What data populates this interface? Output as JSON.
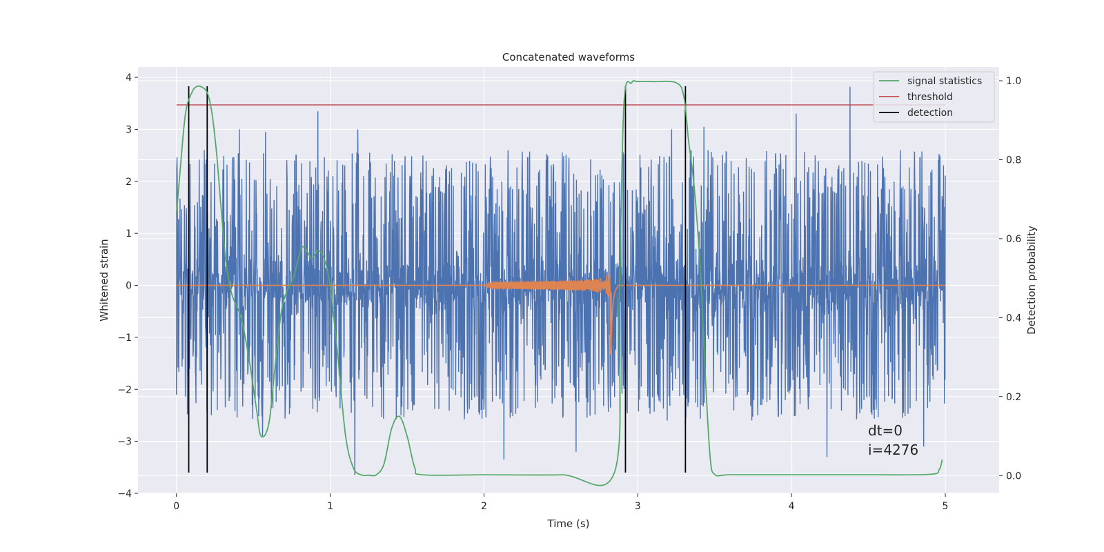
{
  "chart_data": {
    "type": "line",
    "title": "Concatenated waveforms",
    "xlabel": "Time (s)",
    "ylabel_left": "Whitened strain",
    "ylabel_right": "Detection probability",
    "xlim": [
      -0.25,
      5.35
    ],
    "ylim_left": [
      -4,
      4.2
    ],
    "ylim_right": [
      -0.045,
      1.035
    ],
    "xticks": [
      0,
      1,
      2,
      3,
      4,
      5
    ],
    "yticks_left": [
      -4,
      -3,
      -2,
      -1,
      0,
      1,
      2,
      3,
      4
    ],
    "yticks_right": [
      0.0,
      0.2,
      0.4,
      0.6,
      0.8,
      1.0
    ],
    "ytick_labels_right": [
      "0.0",
      "0.2",
      "0.4",
      "0.6",
      "0.8",
      "1.0"
    ],
    "grid": true,
    "legend_position": "top-right",
    "colors": {
      "strain": "#4c72b0",
      "waveform": "#dd8452",
      "signal_statistics": "#55a868",
      "threshold": "#c44e52",
      "detection": "#000000",
      "plot_background": "#eaeaf2",
      "grid": "#ffffff"
    },
    "series": [
      {
        "id": "strain",
        "axis": "left",
        "x_range": [
          0,
          5
        ],
        "core_amplitude": 0.6,
        "min": -3.65,
        "max": 3.82,
        "peaks": [
          {
            "x": 0.18,
            "y": 2.6
          },
          {
            "x": 0.41,
            "y": 3.0
          },
          {
            "x": 0.58,
            "y": 2.95
          },
          {
            "x": 0.92,
            "y": 3.35
          },
          {
            "x": 1.18,
            "y": 3.0
          },
          {
            "x": 3.22,
            "y": 3.0
          },
          {
            "x": 3.43,
            "y": 3.05
          },
          {
            "x": 4.03,
            "y": 3.3
          },
          {
            "x": 4.38,
            "y": 3.82
          },
          {
            "x": 1.16,
            "y": -3.65
          },
          {
            "x": 0.56,
            "y": -2.9
          },
          {
            "x": 2.13,
            "y": -3.35
          },
          {
            "x": 2.6,
            "y": -3.2
          },
          {
            "x": 4.23,
            "y": -3.3
          },
          {
            "x": 4.86,
            "y": -3.1
          }
        ]
      },
      {
        "id": "waveform",
        "axis": "left",
        "chirp_start": 2.0,
        "merger_time": 2.82,
        "end_time": 2.87,
        "peak_amplitude": 1.6,
        "x_range": [
          0,
          5
        ]
      },
      {
        "id": "signal_statistics",
        "name": "signal statistics",
        "axis": "right",
        "x": [
          0.0,
          0.03,
          0.06,
          0.1,
          0.13,
          0.16,
          0.2,
          0.23,
          0.26,
          0.29,
          0.32,
          0.36,
          0.42,
          0.47,
          0.52,
          0.55,
          0.6,
          0.64,
          0.68,
          0.72,
          0.76,
          0.8,
          0.83,
          0.88,
          0.92,
          0.96,
          1.0,
          1.05,
          1.1,
          1.15,
          1.2,
          1.25,
          1.3,
          1.35,
          1.4,
          1.45,
          1.5,
          1.55,
          1.6,
          2.0,
          2.5,
          2.85,
          2.88,
          2.91,
          2.96,
          3.0,
          3.1,
          3.25,
          3.3,
          3.33,
          3.37,
          3.41,
          3.44,
          3.47,
          3.5,
          3.6,
          4.0,
          4.5,
          4.9,
          4.96,
          4.98
        ],
        "y": [
          0.66,
          0.8,
          0.92,
          0.97,
          0.985,
          0.985,
          0.97,
          0.92,
          0.82,
          0.68,
          0.55,
          0.46,
          0.4,
          0.3,
          0.17,
          0.1,
          0.13,
          0.27,
          0.41,
          0.47,
          0.5,
          0.56,
          0.58,
          0.55,
          0.57,
          0.55,
          0.48,
          0.3,
          0.1,
          0.02,
          0.002,
          0.001,
          0.002,
          0.03,
          0.12,
          0.15,
          0.1,
          0.02,
          0.002,
          0.002,
          0.002,
          0.01,
          0.45,
          0.94,
          0.995,
          0.998,
          0.998,
          0.995,
          0.96,
          0.85,
          0.72,
          0.5,
          0.25,
          0.05,
          0.003,
          0.002,
          0.002,
          0.002,
          0.003,
          0.015,
          0.04
        ]
      },
      {
        "id": "threshold",
        "name": "threshold",
        "axis": "left",
        "x": [
          0,
          5
        ],
        "y": [
          3.47,
          3.47
        ]
      },
      {
        "id": "detection",
        "name": "detection",
        "axis": "left",
        "x_positions": [
          0.08,
          0.2,
          2.92,
          3.31
        ],
        "y_range": [
          -3.6,
          3.83
        ]
      }
    ],
    "legend": [
      "signal statistics",
      "threshold",
      "detection"
    ],
    "annotations": [
      "dt=0",
      "i=4276"
    ]
  }
}
